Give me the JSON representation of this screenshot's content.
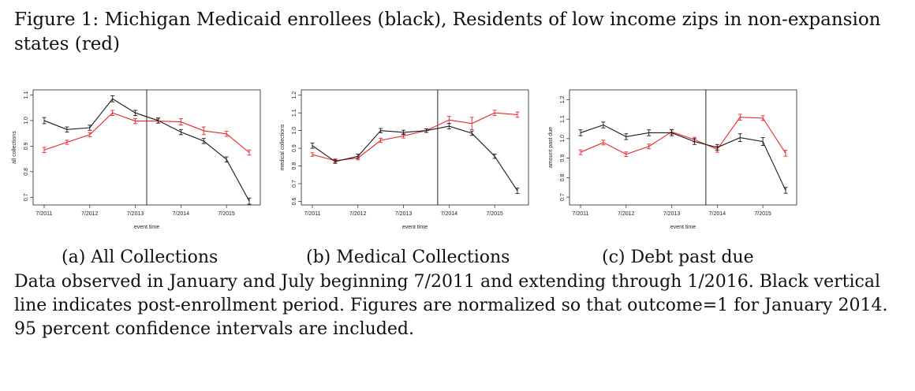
{
  "figure": {
    "title": "Figure 1: Michigan Medicaid enrollees (black), Residents of low income zips in non-expansion states (red)",
    "note": "Data observed in January and July beginning 7/2011 and extending through 1/2016. Black vertical line indicates post-enrollment period. Figures are normalized so that outcome=1 for January 2014. 95 percent confidence intervals are included."
  },
  "colors": {
    "black_series": "#1a1a1a",
    "red_series": "#e8252a"
  },
  "chart_data": [
    {
      "type": "line",
      "caption": "(a) All Collections",
      "xlabel": "event time",
      "ylabel": "all collections",
      "x_tick_labels": [
        "7/2011",
        "7/2012",
        "7/2013",
        "7/2014",
        "7/2015"
      ],
      "x_tick_index": [
        0,
        2,
        4,
        6,
        8
      ],
      "n_points": 10,
      "vline_index": 5,
      "ylim": [
        0.67,
        1.12
      ],
      "y_ticks": [
        0.7,
        0.8,
        0.9,
        1.0,
        1.1
      ],
      "y_tick_labels": [
        "0.7",
        "0.8",
        "0.9",
        "1.0",
        "1.1"
      ],
      "series": [
        {
          "name": "Michigan Medicaid enrollees",
          "color": "black",
          "values": [
            1.0,
            0.965,
            0.972,
            1.085,
            1.03,
            1.0,
            0.955,
            0.92,
            0.848,
            0.685
          ],
          "ci": [
            0.012,
            0.01,
            0.01,
            0.012,
            0.01,
            0.01,
            0.01,
            0.01,
            0.01,
            0.012
          ]
        },
        {
          "name": "Residents of low income zips in non-expansion states",
          "color": "red",
          "values": [
            0.885,
            0.915,
            0.945,
            1.03,
            0.998,
            0.998,
            0.995,
            0.96,
            0.948,
            0.875
          ],
          "ci": [
            0.01,
            0.008,
            0.008,
            0.01,
            0.01,
            0.008,
            0.012,
            0.015,
            0.01,
            0.01
          ]
        }
      ]
    },
    {
      "type": "line",
      "caption": "(b) Medical Collections",
      "xlabel": "event time",
      "ylabel": "medical collections",
      "x_tick_labels": [
        "7/2011",
        "7/2012",
        "7/2013",
        "7/2014",
        "7/2015"
      ],
      "x_tick_index": [
        0,
        2,
        4,
        6,
        8
      ],
      "n_points": 10,
      "vline_index": 6,
      "ylim": [
        0.58,
        1.23
      ],
      "y_ticks": [
        0.6,
        0.7,
        0.8,
        0.9,
        1.0,
        1.1,
        1.2
      ],
      "y_tick_labels": [
        "0.6",
        "0.7",
        "0.8",
        "0.9",
        "1.0",
        "1.1",
        "1.2"
      ],
      "series": [
        {
          "name": "Michigan Medicaid enrollees",
          "color": "black",
          "values": [
            0.915,
            0.825,
            0.855,
            1.0,
            0.99,
            1.0,
            1.025,
            0.985,
            0.855,
            0.66
          ],
          "ci": [
            0.015,
            0.01,
            0.012,
            0.012,
            0.012,
            0.01,
            0.015,
            0.012,
            0.012,
            0.015
          ]
        },
        {
          "name": "Residents of low income zips in non-expansion states",
          "color": "red",
          "values": [
            0.865,
            0.83,
            0.845,
            0.945,
            0.97,
            1.0,
            1.06,
            1.04,
            1.1,
            1.09
          ],
          "ci": [
            0.01,
            0.01,
            0.01,
            0.012,
            0.012,
            0.01,
            0.02,
            0.035,
            0.015,
            0.015
          ]
        }
      ]
    },
    {
      "type": "line",
      "caption": "(c) Debt past due",
      "xlabel": "event time",
      "ylabel": "amount past due",
      "x_tick_labels": [
        "7/2011",
        "7/2012",
        "7/2013",
        "7/2014",
        "7/2015"
      ],
      "x_tick_index": [
        0,
        2,
        4,
        6,
        8
      ],
      "n_points": 10,
      "vline_index": 6,
      "ylim": [
        0.66,
        1.25
      ],
      "y_ticks": [
        0.7,
        0.8,
        0.9,
        1.0,
        1.1,
        1.2
      ],
      "y_tick_labels": [
        "0.7",
        "0.8",
        "0.9",
        "1.0",
        "1.1",
        "1.2"
      ],
      "series": [
        {
          "name": "Michigan Medicaid enrollees",
          "color": "black",
          "values": [
            1.03,
            1.07,
            1.01,
            1.03,
            1.03,
            0.985,
            0.955,
            1.005,
            0.985,
            0.735
          ],
          "ci": [
            0.015,
            0.015,
            0.015,
            0.015,
            0.015,
            0.015,
            0.015,
            0.02,
            0.02,
            0.015
          ]
        },
        {
          "name": "Residents of low income zips in non-expansion states",
          "color": "red",
          "values": [
            0.93,
            0.98,
            0.92,
            0.96,
            1.035,
            0.995,
            0.945,
            1.11,
            1.105,
            0.925
          ],
          "ci": [
            0.012,
            0.012,
            0.012,
            0.012,
            0.012,
            0.012,
            0.015,
            0.015,
            0.012,
            0.015
          ]
        }
      ]
    }
  ]
}
